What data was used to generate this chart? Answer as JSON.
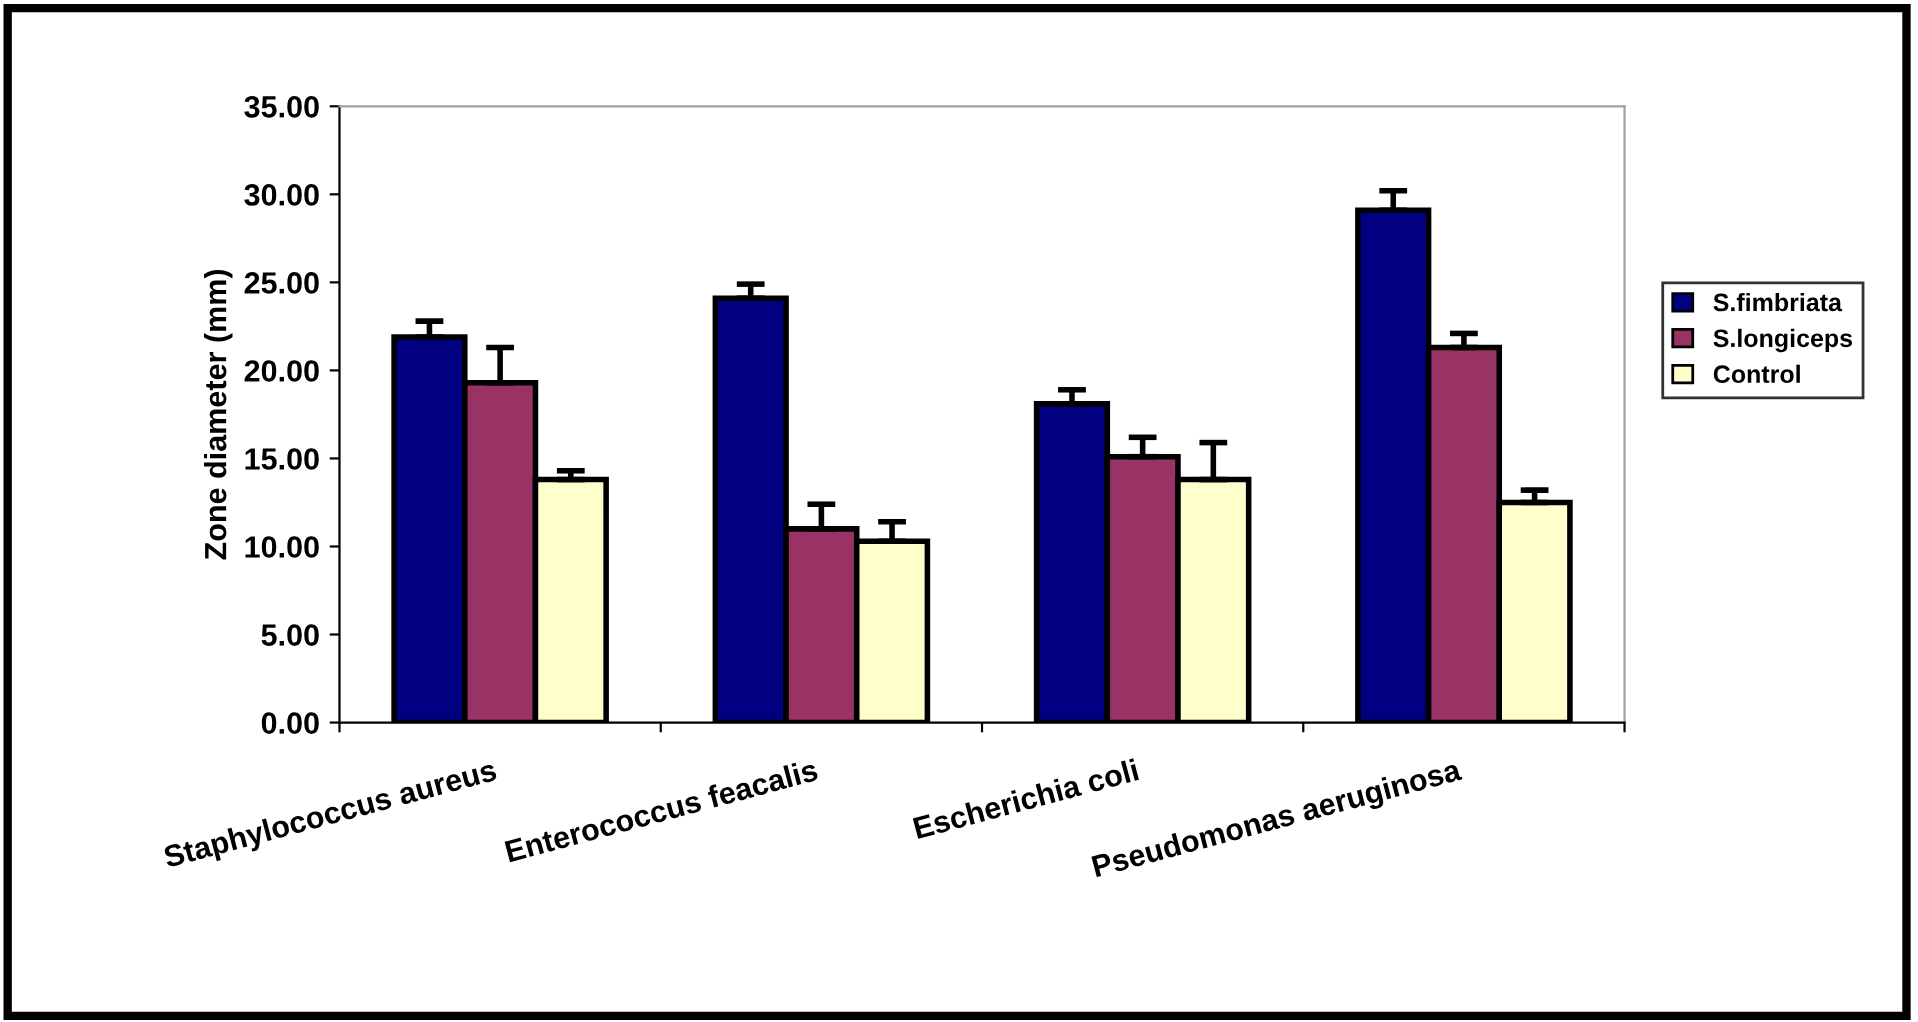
{
  "chart_data": {
    "type": "bar",
    "ylabel": "Zone diameter (mm)",
    "categories": [
      "Staphylococcus aureus",
      "Enterococcus feacalis",
      "Escherichia coli",
      "Pseudomonas aeruginosa"
    ],
    "series": [
      {
        "name": "S.fimbriata",
        "color": "#000080",
        "values": [
          21.9,
          24.1,
          18.1,
          29.1
        ],
        "errors": [
          0.9,
          0.8,
          0.8,
          1.1
        ]
      },
      {
        "name": "S.longiceps",
        "color": "#993366",
        "values": [
          19.3,
          11.0,
          15.1,
          21.3
        ],
        "errors": [
          2.0,
          1.4,
          1.1,
          0.8
        ]
      },
      {
        "name": "Control",
        "color": "#ffffcc",
        "values": [
          13.8,
          10.3,
          13.8,
          12.5
        ],
        "errors": [
          0.5,
          1.1,
          2.1,
          0.7
        ]
      }
    ],
    "ylim": [
      0,
      35
    ],
    "yticks": [
      {
        "value": 0,
        "label": "0.00"
      },
      {
        "value": 5,
        "label": "5.00"
      },
      {
        "value": 10,
        "label": "10.00"
      },
      {
        "value": 15,
        "label": "15.00"
      },
      {
        "value": 20,
        "label": "20.00"
      },
      {
        "value": 25,
        "label": "25.00"
      },
      {
        "value": 30,
        "label": "30.00"
      },
      {
        "value": 35,
        "label": "35.00"
      }
    ],
    "grid": false,
    "legend": "right"
  }
}
